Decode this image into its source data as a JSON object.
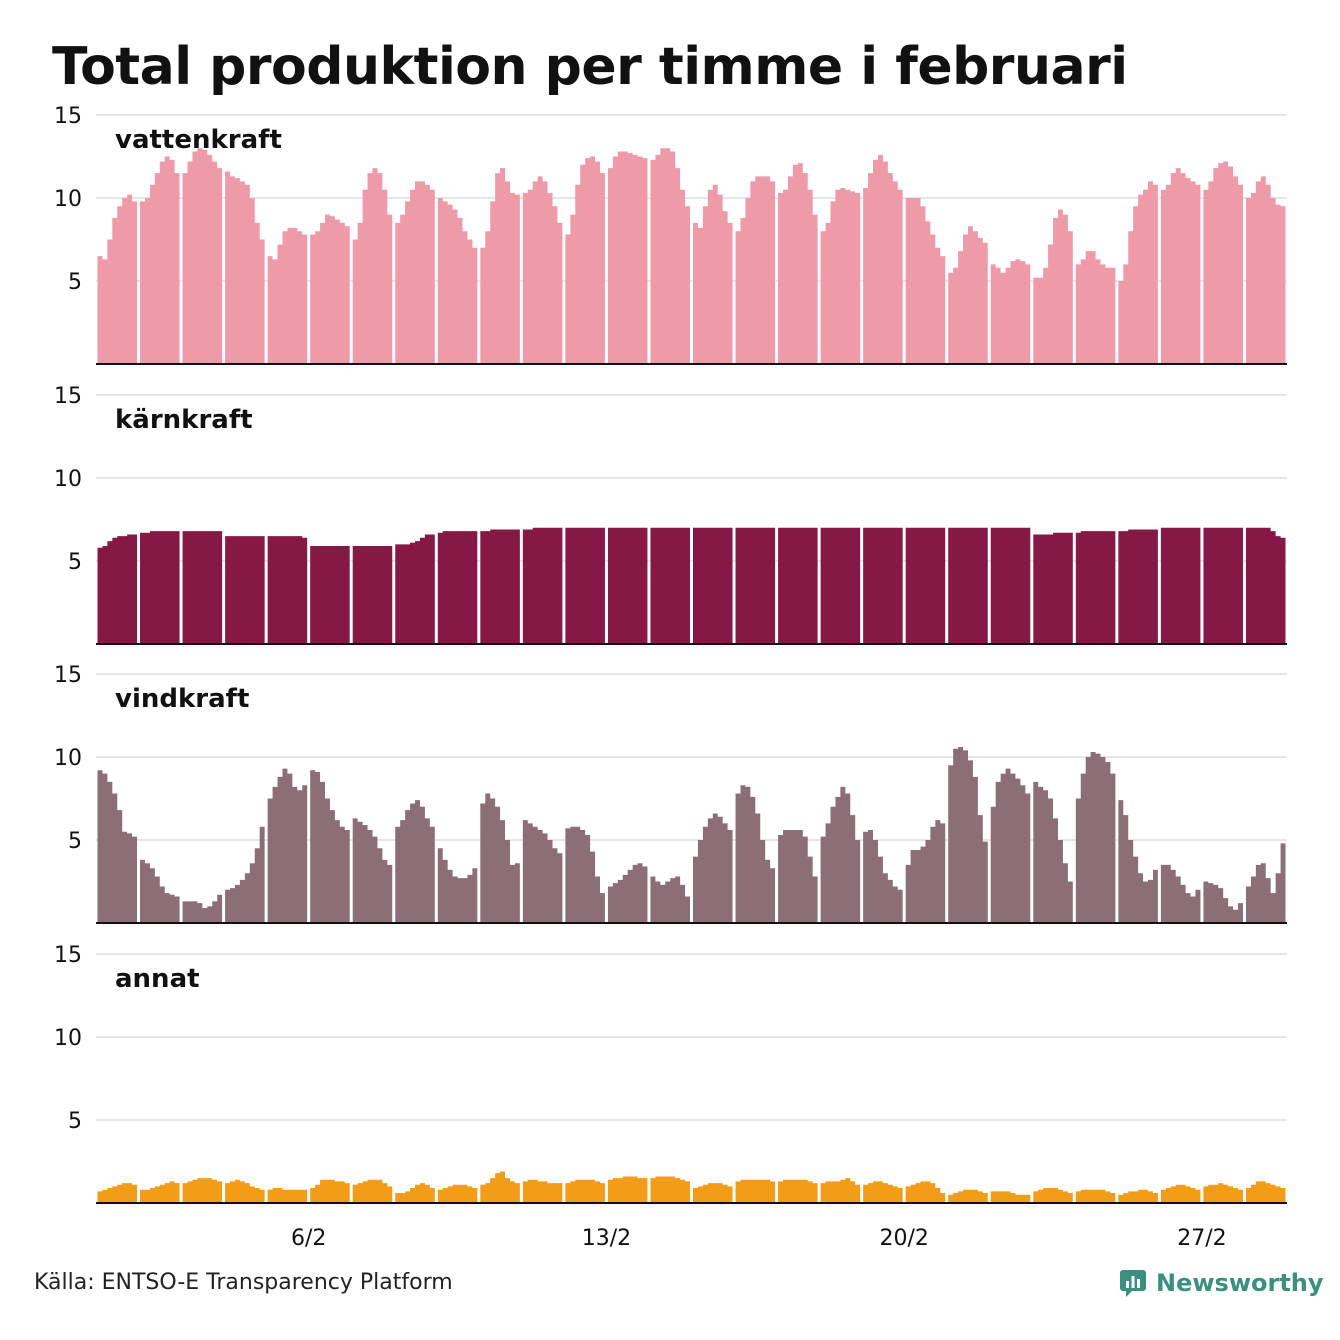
{
  "title": "Total produktion per timme i februari",
  "source": "Källa: ENTSO-E Transparency Platform",
  "brand": {
    "name": "Newsworthy",
    "icon": "newsworthy-logo-icon",
    "color": "#3a8f80"
  },
  "chart_data": {
    "type": "area",
    "layout": "small-multiples",
    "x_unit": "hour",
    "x_start_day": 1,
    "x_end_day": 29,
    "x_ticks": [
      {
        "day": 6,
        "label": "6/2"
      },
      {
        "day": 13,
        "label": "13/2"
      },
      {
        "day": 20,
        "label": "20/2"
      },
      {
        "day": 27,
        "label": "27/2"
      }
    ],
    "ylim": [
      0,
      15
    ],
    "y_ticks": [
      5,
      10,
      15
    ],
    "grid": true,
    "day_separators": true,
    "series": [
      {
        "name": "vattenkraft",
        "color": "#ee9aa8",
        "daily_values": [
          [
            6.5,
            6.3,
            7.5,
            8.8,
            9.5,
            10.0,
            10.2,
            9.8
          ],
          [
            9.8,
            10.0,
            10.8,
            11.5,
            12.2,
            12.5,
            12.3,
            11.5
          ],
          [
            11.5,
            12.2,
            12.8,
            13.0,
            12.9,
            12.6,
            12.2,
            11.8
          ],
          [
            11.6,
            11.3,
            11.2,
            11.0,
            10.8,
            10.0,
            8.5,
            7.5
          ],
          [
            6.5,
            6.3,
            7.2,
            8.0,
            8.2,
            8.2,
            8.0,
            7.8
          ],
          [
            7.8,
            8.0,
            8.5,
            9.0,
            8.9,
            8.7,
            8.5,
            8.3
          ],
          [
            7.5,
            8.5,
            10.5,
            11.5,
            11.8,
            11.5,
            10.5,
            9.0
          ],
          [
            8.5,
            9.0,
            9.8,
            10.5,
            11.0,
            11.0,
            10.8,
            10.5
          ],
          [
            10.0,
            9.8,
            9.6,
            9.3,
            8.8,
            8.0,
            7.5,
            7.0
          ],
          [
            7.0,
            8.0,
            9.8,
            11.5,
            11.8,
            11.0,
            10.3,
            10.2
          ],
          [
            10.3,
            10.5,
            11.0,
            11.3,
            11.0,
            10.3,
            9.5,
            8.5
          ],
          [
            7.8,
            9.0,
            10.8,
            12.0,
            12.4,
            12.5,
            12.2,
            11.5
          ],
          [
            11.8,
            12.5,
            12.8,
            12.8,
            12.7,
            12.6,
            12.5,
            12.4
          ],
          [
            12.3,
            12.6,
            13.0,
            13.0,
            12.8,
            11.8,
            10.5,
            9.5
          ],
          [
            8.5,
            8.2,
            9.5,
            10.5,
            10.8,
            10.2,
            9.2,
            8.5
          ],
          [
            8.0,
            8.8,
            10.0,
            11.0,
            11.3,
            11.3,
            11.3,
            11.0
          ],
          [
            10.3,
            10.5,
            11.3,
            12.0,
            12.1,
            11.5,
            10.5,
            9.0
          ],
          [
            8.0,
            8.5,
            9.8,
            10.5,
            10.6,
            10.5,
            10.4,
            10.3
          ],
          [
            10.6,
            11.5,
            12.3,
            12.6,
            12.2,
            11.5,
            11.0,
            10.5
          ],
          [
            10.0,
            10.0,
            10.0,
            9.5,
            8.6,
            7.8,
            7.0,
            6.5
          ],
          [
            5.5,
            5.8,
            6.8,
            7.8,
            8.3,
            8.0,
            7.6,
            7.3
          ],
          [
            6.0,
            5.8,
            5.5,
            5.8,
            6.2,
            6.3,
            6.2,
            6.0
          ],
          [
            5.2,
            5.2,
            5.8,
            7.2,
            8.8,
            9.3,
            9.0,
            8.0
          ],
          [
            6.0,
            6.3,
            6.8,
            6.8,
            6.3,
            6.0,
            5.8,
            5.8
          ],
          [
            5.0,
            6.0,
            8.0,
            9.5,
            10.2,
            10.5,
            11.0,
            10.8
          ],
          [
            10.5,
            10.8,
            11.5,
            11.8,
            11.5,
            11.2,
            11.0,
            10.8
          ],
          [
            10.5,
            11.0,
            11.8,
            12.1,
            12.2,
            11.9,
            11.3,
            10.8
          ],
          [
            10.0,
            10.3,
            11.0,
            11.3,
            10.8,
            10.0,
            9.6,
            9.5
          ]
        ]
      },
      {
        "name": "kärnkraft",
        "color": "#861846",
        "daily_values": [
          [
            5.8,
            5.9,
            6.2,
            6.4,
            6.5,
            6.5,
            6.6,
            6.6
          ],
          [
            6.7,
            6.7,
            6.8,
            6.8,
            6.8,
            6.8,
            6.8,
            6.8
          ],
          [
            6.8,
            6.8,
            6.8,
            6.8,
            6.8,
            6.8,
            6.8,
            6.8
          ],
          [
            6.5,
            6.5,
            6.5,
            6.5,
            6.5,
            6.5,
            6.5,
            6.5
          ],
          [
            6.5,
            6.5,
            6.5,
            6.5,
            6.5,
            6.5,
            6.5,
            6.4
          ],
          [
            5.9,
            5.9,
            5.9,
            5.9,
            5.9,
            5.9,
            5.9,
            5.9
          ],
          [
            5.9,
            5.9,
            5.9,
            5.9,
            5.9,
            5.9,
            5.9,
            5.9
          ],
          [
            6.0,
            6.0,
            6.0,
            6.1,
            6.2,
            6.4,
            6.6,
            6.6
          ],
          [
            6.7,
            6.8,
            6.8,
            6.8,
            6.8,
            6.8,
            6.8,
            6.8
          ],
          [
            6.8,
            6.8,
            6.9,
            6.9,
            6.9,
            6.9,
            6.9,
            6.9
          ],
          [
            6.9,
            6.9,
            7.0,
            7.0,
            7.0,
            7.0,
            7.0,
            7.0
          ],
          [
            7.0,
            7.0,
            7.0,
            7.0,
            7.0,
            7.0,
            7.0,
            7.0
          ],
          [
            7.0,
            7.0,
            7.0,
            7.0,
            7.0,
            7.0,
            7.0,
            7.0
          ],
          [
            7.0,
            7.0,
            7.0,
            7.0,
            7.0,
            7.0,
            7.0,
            7.0
          ],
          [
            7.0,
            7.0,
            7.0,
            7.0,
            7.0,
            7.0,
            7.0,
            7.0
          ],
          [
            7.0,
            7.0,
            7.0,
            7.0,
            7.0,
            7.0,
            7.0,
            7.0
          ],
          [
            7.0,
            7.0,
            7.0,
            7.0,
            7.0,
            7.0,
            7.0,
            7.0
          ],
          [
            7.0,
            7.0,
            7.0,
            7.0,
            7.0,
            7.0,
            7.0,
            7.0
          ],
          [
            7.0,
            7.0,
            7.0,
            7.0,
            7.0,
            7.0,
            7.0,
            7.0
          ],
          [
            7.0,
            7.0,
            7.0,
            7.0,
            7.0,
            7.0,
            7.0,
            7.0
          ],
          [
            7.0,
            7.0,
            7.0,
            7.0,
            7.0,
            7.0,
            7.0,
            7.0
          ],
          [
            7.0,
            7.0,
            7.0,
            7.0,
            7.0,
            7.0,
            7.0,
            7.0
          ],
          [
            6.6,
            6.6,
            6.6,
            6.6,
            6.7,
            6.7,
            6.7,
            6.7
          ],
          [
            6.7,
            6.8,
            6.8,
            6.8,
            6.8,
            6.8,
            6.8,
            6.8
          ],
          [
            6.8,
            6.8,
            6.9,
            6.9,
            6.9,
            6.9,
            6.9,
            6.9
          ],
          [
            7.0,
            7.0,
            7.0,
            7.0,
            7.0,
            7.0,
            7.0,
            7.0
          ],
          [
            7.0,
            7.0,
            7.0,
            7.0,
            7.0,
            7.0,
            7.0,
            7.0
          ],
          [
            7.0,
            7.0,
            7.0,
            7.0,
            7.0,
            6.8,
            6.5,
            6.4
          ]
        ]
      },
      {
        "name": "vindkraft",
        "color": "#8c6e76",
        "daily_values": [
          [
            9.2,
            9.0,
            8.5,
            7.8,
            6.8,
            5.5,
            5.4,
            5.2
          ],
          [
            3.8,
            3.6,
            3.3,
            2.8,
            2.2,
            1.8,
            1.7,
            1.6
          ],
          [
            1.3,
            1.3,
            1.3,
            1.2,
            0.9,
            1.0,
            1.3,
            1.7
          ],
          [
            2.0,
            2.1,
            2.3,
            2.6,
            3.0,
            3.6,
            4.5,
            5.8
          ],
          [
            7.5,
            8.2,
            8.8,
            9.3,
            9.0,
            8.2,
            8.0,
            8.3
          ],
          [
            9.2,
            9.1,
            8.5,
            7.5,
            6.8,
            6.2,
            5.8,
            5.6
          ],
          [
            6.3,
            6.1,
            5.9,
            5.6,
            5.2,
            4.5,
            3.8,
            3.5
          ],
          [
            5.8,
            6.2,
            6.8,
            7.2,
            7.4,
            7.0,
            6.3,
            5.8
          ],
          [
            4.5,
            3.8,
            3.2,
            2.8,
            2.7,
            2.7,
            2.9,
            3.3
          ],
          [
            7.2,
            7.8,
            7.5,
            7.0,
            6.2,
            5.0,
            3.5,
            3.6
          ],
          [
            6.2,
            6.0,
            5.8,
            5.6,
            5.4,
            5.0,
            4.5,
            4.2
          ],
          [
            5.7,
            5.8,
            5.8,
            5.6,
            5.3,
            4.3,
            2.8,
            1.8
          ],
          [
            2.2,
            2.4,
            2.6,
            2.9,
            3.2,
            3.5,
            3.6,
            3.4
          ],
          [
            2.8,
            2.5,
            2.3,
            2.5,
            2.7,
            2.8,
            2.3,
            1.6
          ],
          [
            4.0,
            5.0,
            5.8,
            6.3,
            6.6,
            6.4,
            6.0,
            5.6
          ],
          [
            7.8,
            8.3,
            8.2,
            7.6,
            6.6,
            5.0,
            3.8,
            3.3
          ],
          [
            5.3,
            5.6,
            5.6,
            5.6,
            5.6,
            5.2,
            4.0,
            2.8
          ],
          [
            5.2,
            6.0,
            7.0,
            7.6,
            8.2,
            7.8,
            6.5,
            5.0
          ],
          [
            5.5,
            5.6,
            5.0,
            4.0,
            3.0,
            2.6,
            2.2,
            2.0
          ],
          [
            3.5,
            4.4,
            4.4,
            4.6,
            5.0,
            5.8,
            6.2,
            6.0
          ],
          [
            9.5,
            10.5,
            10.6,
            10.4,
            9.8,
            8.8,
            6.5,
            4.9
          ],
          [
            7.0,
            8.5,
            9.0,
            9.3,
            9.0,
            8.7,
            8.3,
            7.8
          ],
          [
            8.5,
            8.2,
            8.0,
            7.5,
            6.3,
            5.0,
            3.6,
            2.5
          ],
          [
            7.5,
            9.0,
            10.0,
            10.3,
            10.2,
            10.0,
            9.7,
            9.0
          ],
          [
            7.4,
            6.5,
            5.0,
            4.0,
            3.0,
            2.5,
            2.6,
            3.2
          ],
          [
            3.5,
            3.5,
            3.2,
            2.8,
            2.3,
            1.8,
            1.6,
            2.0
          ],
          [
            2.5,
            2.4,
            2.3,
            2.1,
            1.5,
            1.0,
            0.8,
            1.2
          ],
          [
            2.2,
            2.8,
            3.5,
            3.6,
            2.7,
            1.8,
            3.0,
            4.8
          ]
        ]
      },
      {
        "name": "annat",
        "color": "#f39c18",
        "daily_values": [
          [
            0.7,
            0.8,
            0.9,
            1.0,
            1.1,
            1.2,
            1.2,
            1.1
          ],
          [
            0.8,
            0.8,
            0.9,
            1.0,
            1.1,
            1.2,
            1.3,
            1.2
          ],
          [
            1.2,
            1.3,
            1.4,
            1.5,
            1.5,
            1.5,
            1.4,
            1.3
          ],
          [
            1.2,
            1.3,
            1.4,
            1.3,
            1.2,
            1.0,
            0.9,
            0.8
          ],
          [
            0.8,
            0.9,
            0.9,
            0.8,
            0.8,
            0.8,
            0.8,
            0.8
          ],
          [
            0.9,
            1.1,
            1.4,
            1.4,
            1.4,
            1.3,
            1.3,
            1.2
          ],
          [
            1.1,
            1.2,
            1.3,
            1.4,
            1.4,
            1.4,
            1.2,
            1.0
          ],
          [
            0.6,
            0.6,
            0.7,
            0.9,
            1.1,
            1.2,
            1.1,
            0.9
          ],
          [
            0.8,
            0.9,
            1.0,
            1.1,
            1.1,
            1.1,
            1.0,
            0.9
          ],
          [
            1.1,
            1.2,
            1.5,
            1.8,
            1.9,
            1.5,
            1.3,
            1.2
          ],
          [
            1.3,
            1.4,
            1.4,
            1.3,
            1.3,
            1.2,
            1.2,
            1.2
          ],
          [
            1.2,
            1.3,
            1.4,
            1.4,
            1.4,
            1.4,
            1.3,
            1.2
          ],
          [
            1.4,
            1.5,
            1.5,
            1.6,
            1.6,
            1.6,
            1.5,
            1.5
          ],
          [
            1.5,
            1.6,
            1.6,
            1.6,
            1.6,
            1.5,
            1.4,
            1.3
          ],
          [
            0.9,
            1.0,
            1.1,
            1.2,
            1.2,
            1.2,
            1.1,
            1.0
          ],
          [
            1.3,
            1.4,
            1.4,
            1.4,
            1.4,
            1.4,
            1.4,
            1.3
          ],
          [
            1.3,
            1.4,
            1.4,
            1.4,
            1.4,
            1.4,
            1.3,
            1.2
          ],
          [
            1.2,
            1.3,
            1.3,
            1.3,
            1.4,
            1.5,
            1.3,
            1.1
          ],
          [
            1.1,
            1.2,
            1.3,
            1.3,
            1.2,
            1.1,
            1.0,
            0.9
          ],
          [
            1.0,
            1.1,
            1.2,
            1.3,
            1.3,
            1.2,
            0.9,
            0.6
          ],
          [
            0.5,
            0.6,
            0.7,
            0.8,
            0.8,
            0.8,
            0.7,
            0.6
          ],
          [
            0.7,
            0.7,
            0.7,
            0.7,
            0.6,
            0.5,
            0.5,
            0.5
          ],
          [
            0.7,
            0.8,
            0.9,
            0.9,
            0.9,
            0.8,
            0.7,
            0.6
          ],
          [
            0.7,
            0.8,
            0.8,
            0.8,
            0.8,
            0.8,
            0.7,
            0.6
          ],
          [
            0.5,
            0.6,
            0.7,
            0.7,
            0.8,
            0.8,
            0.7,
            0.6
          ],
          [
            0.8,
            0.9,
            1.0,
            1.1,
            1.1,
            1.0,
            0.9,
            0.8
          ],
          [
            1.0,
            1.1,
            1.1,
            1.2,
            1.1,
            1.0,
            0.9,
            0.8
          ],
          [
            0.9,
            1.1,
            1.3,
            1.3,
            1.2,
            1.1,
            1.0,
            0.9
          ]
        ]
      }
    ]
  }
}
